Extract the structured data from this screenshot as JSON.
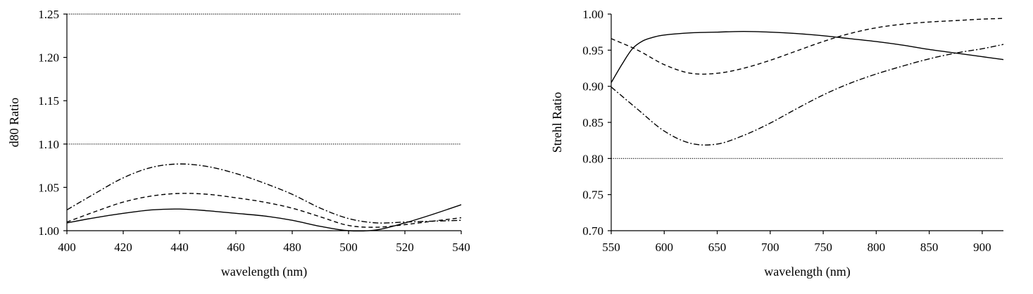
{
  "chart_data": [
    {
      "type": "line",
      "title": "",
      "xlabel": "wavelength (nm)",
      "ylabel": "d80 Ratio",
      "xlim": [
        400,
        540
      ],
      "ylim": [
        1.0,
        1.25
      ],
      "xticks": [
        400,
        420,
        440,
        460,
        480,
        500,
        520,
        540
      ],
      "yticks": [
        1.0,
        1.05,
        1.1,
        1.15,
        1.2,
        1.25
      ],
      "xtick_labels": [
        "400",
        "420",
        "440",
        "460",
        "480",
        "500",
        "520",
        "540"
      ],
      "ytick_labels": [
        "1.00",
        "1.05",
        "1.10",
        "1.15",
        "1.20",
        "1.25"
      ],
      "grid": false,
      "legend": "none",
      "reference_lines": [
        {
          "y": 1.1,
          "style": "dotted"
        },
        {
          "y": 1.25,
          "style": "dotted"
        }
      ],
      "series": [
        {
          "style": "solid",
          "x": [
            400,
            410,
            420,
            430,
            440,
            450,
            460,
            470,
            480,
            490,
            500,
            510,
            520,
            530,
            540
          ],
          "y": [
            1.009,
            1.015,
            1.02,
            1.024,
            1.025,
            1.023,
            1.02,
            1.017,
            1.012,
            1.005,
            1.0,
            1.001,
            1.009,
            1.019,
            1.03
          ]
        },
        {
          "style": "dashed",
          "x": [
            400,
            410,
            420,
            430,
            440,
            450,
            460,
            470,
            480,
            490,
            500,
            510,
            520,
            530,
            540
          ],
          "y": [
            1.01,
            1.022,
            1.033,
            1.04,
            1.043,
            1.042,
            1.038,
            1.033,
            1.026,
            1.016,
            1.006,
            1.004,
            1.007,
            1.011,
            1.015
          ]
        },
        {
          "style": "dashdot",
          "x": [
            400,
            410,
            420,
            430,
            440,
            450,
            460,
            470,
            480,
            490,
            500,
            510,
            520,
            530,
            540
          ],
          "y": [
            1.024,
            1.043,
            1.061,
            1.073,
            1.077,
            1.074,
            1.066,
            1.055,
            1.042,
            1.026,
            1.014,
            1.009,
            1.01,
            1.011,
            1.012
          ]
        }
      ]
    },
    {
      "type": "line",
      "title": "",
      "xlabel": "wavelength (nm)",
      "ylabel": "Strehl Ratio",
      "xlim": [
        550,
        920
      ],
      "ylim": [
        0.7,
        1.0
      ],
      "xticks": [
        550,
        600,
        650,
        700,
        750,
        800,
        850,
        900
      ],
      "yticks": [
        0.7,
        0.75,
        0.8,
        0.85,
        0.9,
        0.95,
        1.0
      ],
      "xtick_labels": [
        "550",
        "600",
        "650",
        "700",
        "750",
        "800",
        "850",
        "900"
      ],
      "ytick_labels": [
        "0.70",
        "0.75",
        "0.80",
        "0.85",
        "0.90",
        "0.95",
        "1.00"
      ],
      "grid": false,
      "legend": "none",
      "reference_lines": [
        {
          "y": 0.8,
          "style": "dotted"
        }
      ],
      "series": [
        {
          "style": "solid",
          "x": [
            550,
            560,
            570,
            580,
            590,
            600,
            625,
            650,
            675,
            700,
            725,
            750,
            775,
            800,
            825,
            850,
            875,
            900,
            920
          ],
          "y": [
            0.905,
            0.93,
            0.952,
            0.963,
            0.968,
            0.971,
            0.974,
            0.975,
            0.976,
            0.975,
            0.973,
            0.97,
            0.966,
            0.962,
            0.957,
            0.951,
            0.946,
            0.941,
            0.937
          ]
        },
        {
          "style": "dashed",
          "x": [
            550,
            575,
            600,
            625,
            650,
            675,
            700,
            725,
            750,
            775,
            800,
            825,
            850,
            875,
            900,
            920
          ],
          "y": [
            0.966,
            0.95,
            0.93,
            0.918,
            0.918,
            0.925,
            0.936,
            0.949,
            0.962,
            0.973,
            0.981,
            0.986,
            0.989,
            0.991,
            0.993,
            0.994
          ]
        },
        {
          "style": "dashdot",
          "x": [
            550,
            575,
            600,
            625,
            650,
            675,
            700,
            725,
            750,
            775,
            800,
            825,
            850,
            875,
            900,
            920
          ],
          "y": [
            0.899,
            0.868,
            0.838,
            0.821,
            0.82,
            0.832,
            0.849,
            0.869,
            0.888,
            0.904,
            0.917,
            0.928,
            0.938,
            0.946,
            0.952,
            0.958
          ]
        }
      ]
    }
  ]
}
